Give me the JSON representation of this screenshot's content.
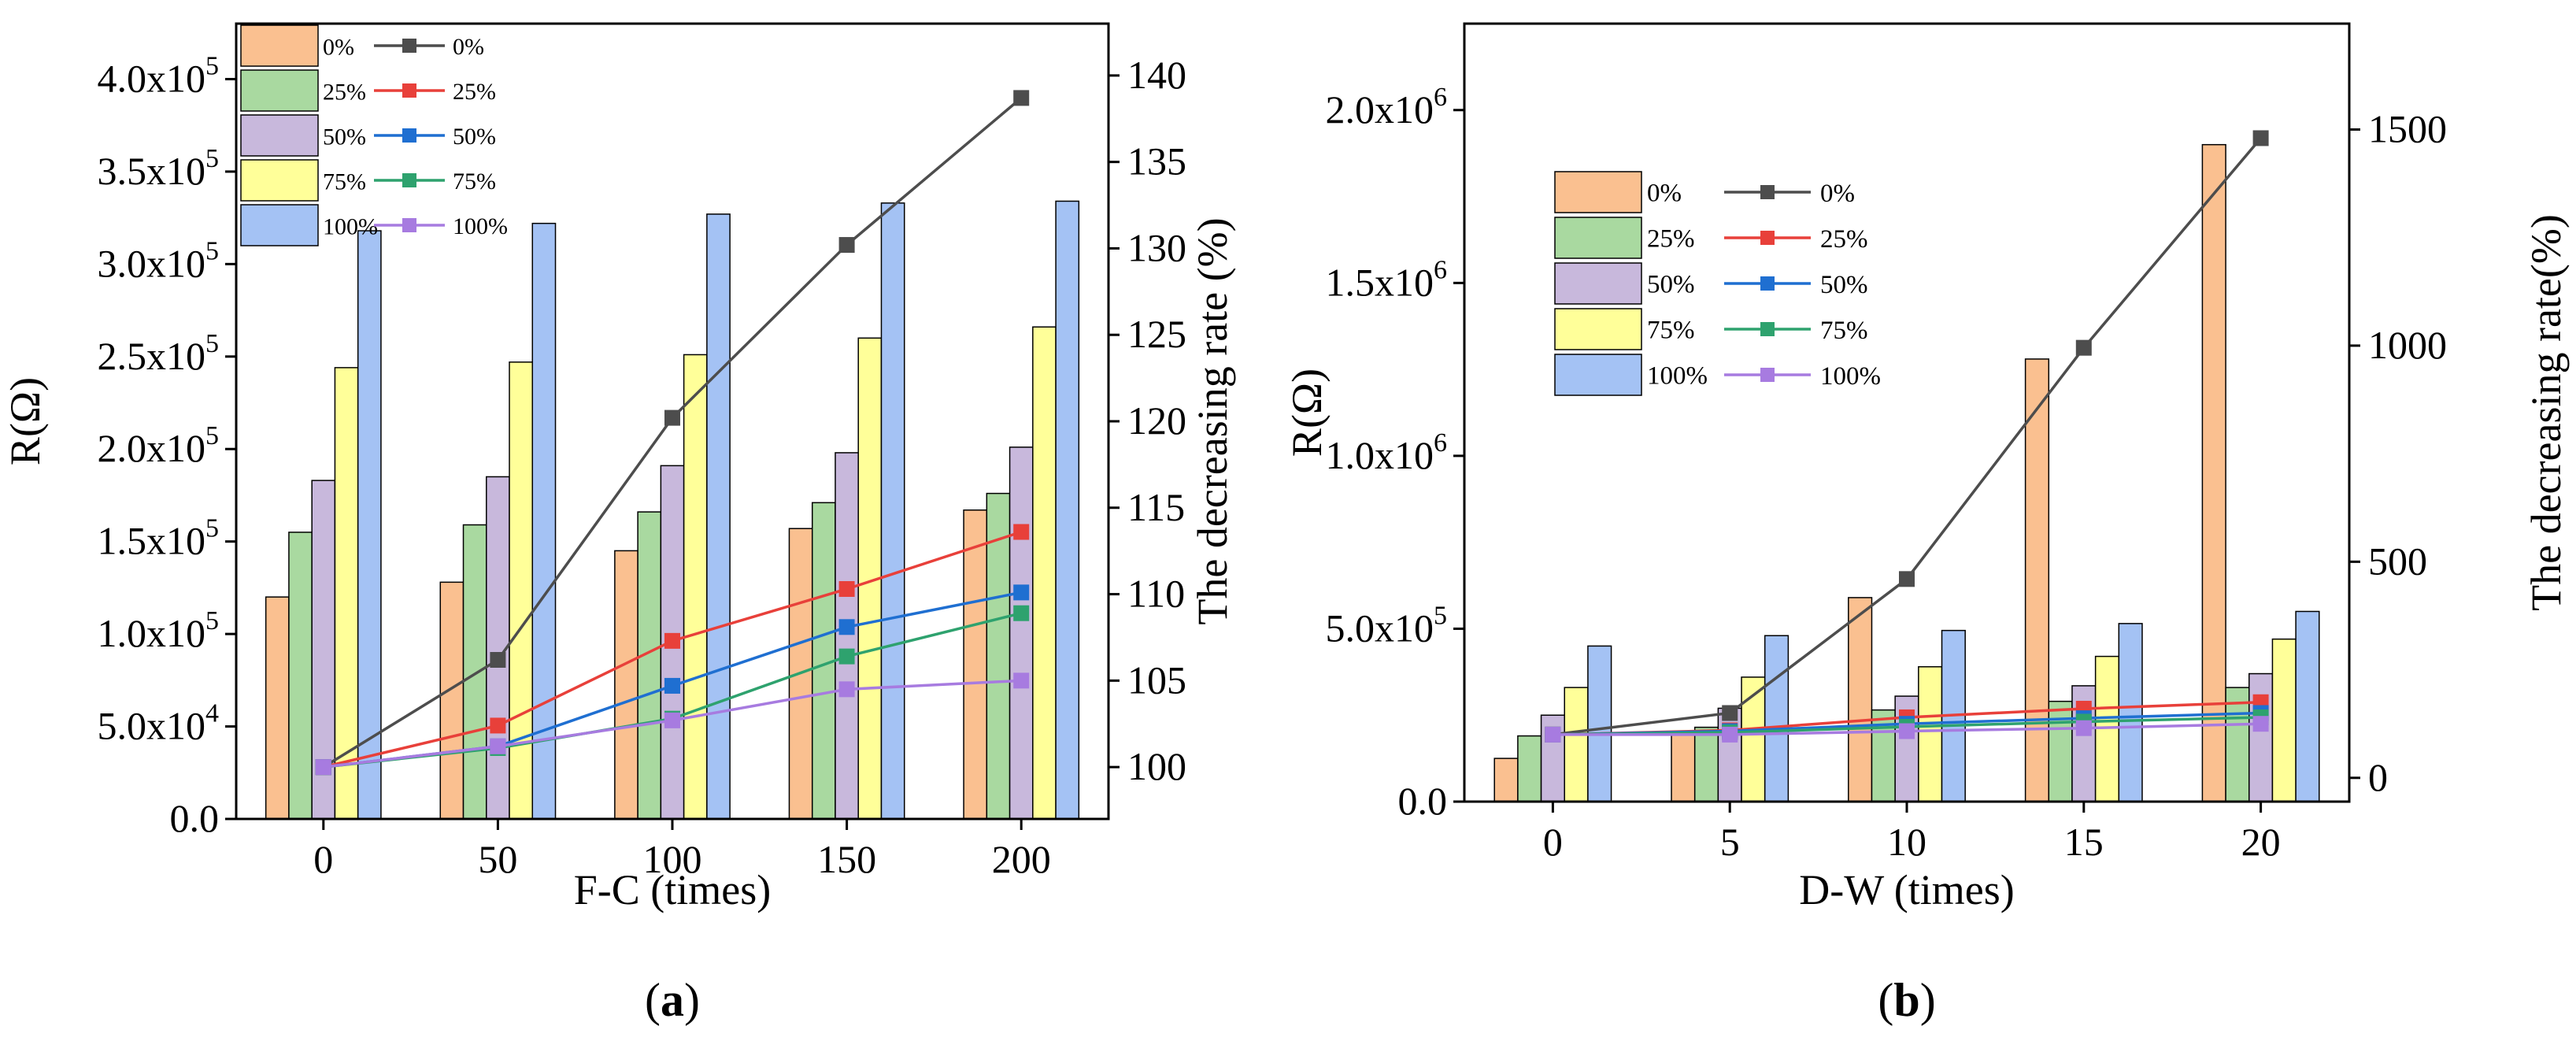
{
  "chart_data": [
    {
      "type": "bar",
      "panel_label": "(a)",
      "panel_letter": "a",
      "xlabel": "F-C (times)",
      "ylabel": "R(Ω)",
      "y2label": "The decreasing rate (%)",
      "categories": [
        "0",
        "50",
        "100",
        "150",
        "200"
      ],
      "ylim": [
        0,
        430000
      ],
      "y_ticks": [
        "0.0",
        "5.0x10^4",
        "1.0x10^5",
        "1.5x10^5",
        "2.0x10^5",
        "2.5x10^5",
        "3.0x10^5",
        "3.5x10^5",
        "4.0x10^5"
      ],
      "y_tick_values": [
        0,
        50000,
        100000,
        150000,
        200000,
        250000,
        300000,
        350000,
        400000
      ],
      "y2lim": [
        97,
        143
      ],
      "y2_ticks": [
        "100",
        "105",
        "110",
        "115",
        "120",
        "125",
        "130",
        "135",
        "140"
      ],
      "y2_tick_values": [
        100,
        105,
        110,
        115,
        120,
        125,
        130,
        135,
        140
      ],
      "bar_series": [
        {
          "name": "0%",
          "color": "#FAC090",
          "values": [
            120000,
            128000,
            145000,
            157000,
            167000
          ]
        },
        {
          "name": "25%",
          "color": "#A9D9A0",
          "values": [
            155000,
            159000,
            166000,
            171000,
            176000
          ]
        },
        {
          "name": "50%",
          "color": "#C8B8DC",
          "values": [
            183000,
            185000,
            191000,
            198000,
            201000
          ]
        },
        {
          "name": "75%",
          "color": "#FFFF99",
          "values": [
            244000,
            247000,
            251000,
            260000,
            266000
          ]
        },
        {
          "name": "100%",
          "color": "#A4C2F4",
          "values": [
            318000,
            322000,
            327000,
            333000,
            334000
          ]
        }
      ],
      "line_series": [
        {
          "name": "0%",
          "color": "#4D4D4D",
          "values": [
            100,
            106.2,
            120.2,
            130.2,
            138.7
          ]
        },
        {
          "name": "25%",
          "color": "#E8403A",
          "values": [
            100,
            102.4,
            107.3,
            110.3,
            113.6
          ]
        },
        {
          "name": "50%",
          "color": "#1F6FD1",
          "values": [
            100,
            101.2,
            104.7,
            108.1,
            110.1
          ]
        },
        {
          "name": "75%",
          "color": "#2EA26E",
          "values": [
            100,
            101.1,
            102.8,
            106.4,
            108.9
          ]
        },
        {
          "name": "100%",
          "color": "#A77BE0",
          "values": [
            100,
            101.2,
            102.7,
            104.5,
            105.0
          ]
        }
      ],
      "legend_position": "top-left"
    },
    {
      "type": "bar",
      "panel_label": "(b)",
      "panel_letter": "b",
      "xlabel": "D-W (times)",
      "ylabel": "R(Ω)",
      "y2label": "The decreasing rate(%)",
      "categories": [
        "0",
        "5",
        "10",
        "15",
        "20"
      ],
      "ylim": [
        0,
        2250000
      ],
      "y_ticks": [
        "0.0",
        "5.0x10^5",
        "1.0x10^6",
        "1.5x10^6",
        "2.0x10^6"
      ],
      "y_tick_values": [
        0,
        500000,
        1000000,
        1500000,
        2000000
      ],
      "y2lim": [
        -55,
        1745
      ],
      "y2_ticks": [
        "0",
        "500",
        "1000",
        "1500"
      ],
      "y2_tick_values": [
        0,
        500,
        1000,
        1500
      ],
      "bar_series": [
        {
          "name": "0%",
          "color": "#FAC090",
          "values": [
            125000,
            200000,
            590000,
            1280000,
            1900000
          ]
        },
        {
          "name": "25%",
          "color": "#A9D9A0",
          "values": [
            190000,
            215000,
            265000,
            290000,
            330000
          ]
        },
        {
          "name": "50%",
          "color": "#C8B8DC",
          "values": [
            250000,
            270000,
            305000,
            335000,
            370000
          ]
        },
        {
          "name": "75%",
          "color": "#FFFF99",
          "values": [
            330000,
            360000,
            390000,
            420000,
            470000
          ]
        },
        {
          "name": "100%",
          "color": "#A4C2F4",
          "values": [
            450000,
            480000,
            495000,
            515000,
            550000
          ]
        }
      ],
      "line_series": [
        {
          "name": "0%",
          "color": "#4D4D4D",
          "values": [
            100,
            150,
            460,
            995,
            1480
          ]
        },
        {
          "name": "25%",
          "color": "#E8403A",
          "values": [
            100,
            110,
            140,
            160,
            175
          ]
        },
        {
          "name": "50%",
          "color": "#1F6FD1",
          "values": [
            100,
            108,
            125,
            138,
            150
          ]
        },
        {
          "name": "75%",
          "color": "#2EA26E",
          "values": [
            100,
            105,
            118,
            130,
            140
          ]
        },
        {
          "name": "100%",
          "color": "#A77BE0",
          "values": [
            100,
            100,
            108,
            115,
            125
          ]
        }
      ],
      "legend_position": "upper-left"
    }
  ]
}
